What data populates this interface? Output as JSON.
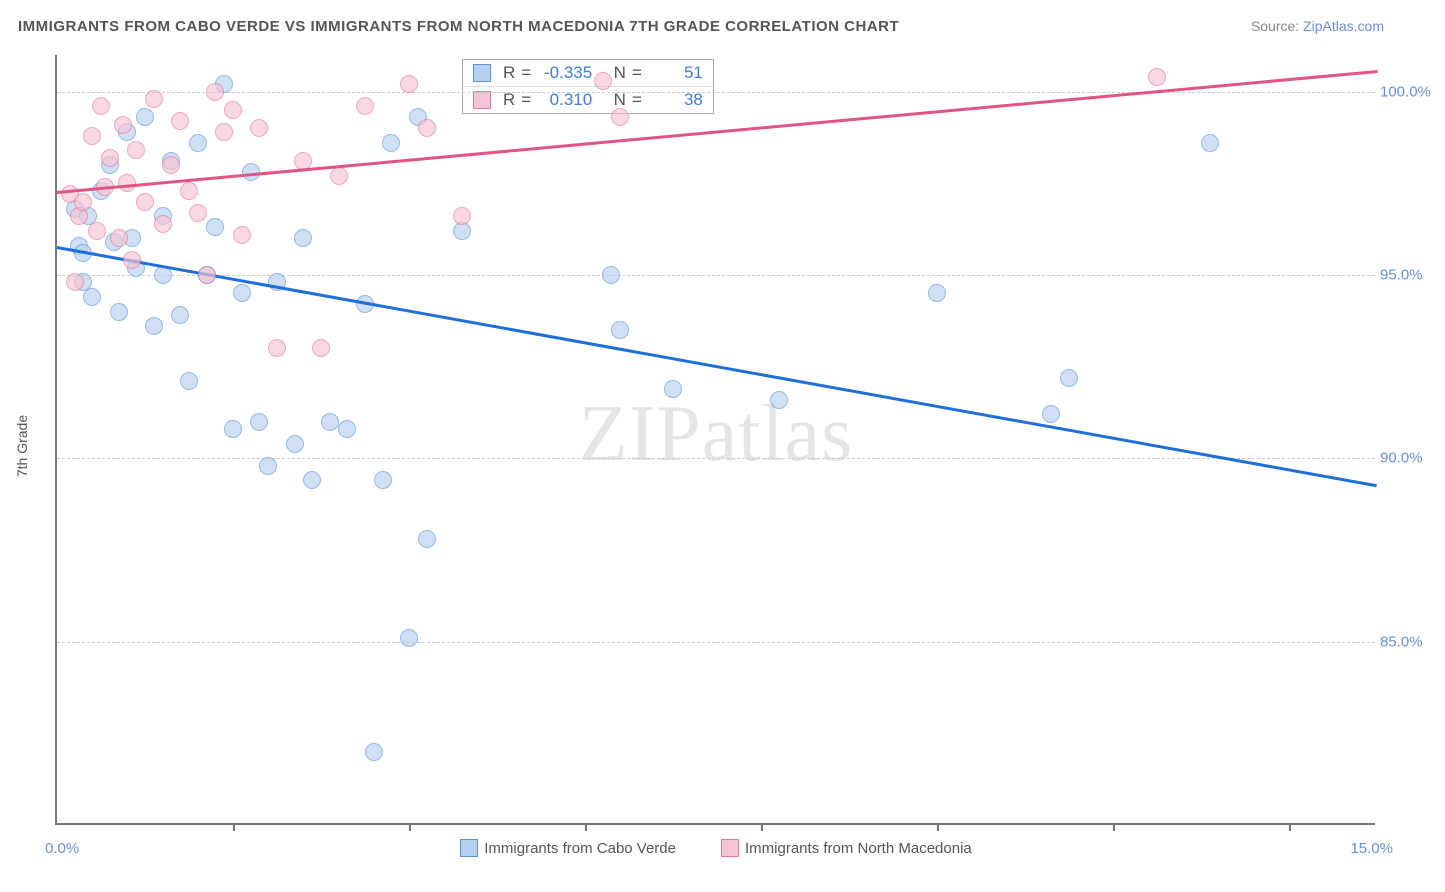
{
  "title": "IMMIGRANTS FROM CABO VERDE VS IMMIGRANTS FROM NORTH MACEDONIA 7TH GRADE CORRELATION CHART",
  "source_prefix": "Source: ",
  "source_name": "ZipAtlas.com",
  "watermark": "ZIPatlas",
  "y_axis_title": "7th Grade",
  "chart": {
    "type": "scatter",
    "x_domain": [
      0,
      15
    ],
    "y_domain": [
      80,
      101
    ],
    "x_min_label": "0.0%",
    "x_max_label": "15.0%",
    "x_ticks": [
      2,
      4,
      6,
      8,
      10,
      12,
      14
    ],
    "y_ticks": [
      {
        "v": 85,
        "label": "85.0%"
      },
      {
        "v": 90,
        "label": "90.0%"
      },
      {
        "v": 95,
        "label": "95.0%"
      },
      {
        "v": 100,
        "label": "100.0%"
      }
    ],
    "grid_color": "#cccccc",
    "background_color": "#ffffff",
    "point_radius": 9,
    "series": [
      {
        "key": "cabo_verde",
        "label": "Immigrants from Cabo Verde",
        "fill": "#b6d0f0",
        "stroke": "#5f94da",
        "line_color": "#1e6fd9",
        "R": "-0.335",
        "N": "51",
        "trend": {
          "x1": 0,
          "y1": 95.8,
          "x2": 15,
          "y2": 89.3
        },
        "points": [
          [
            0.2,
            96.8
          ],
          [
            0.25,
            95.8
          ],
          [
            0.3,
            94.8
          ],
          [
            0.3,
            95.6
          ],
          [
            0.35,
            96.6
          ],
          [
            0.4,
            94.4
          ],
          [
            0.5,
            97.3
          ],
          [
            0.6,
            98.0
          ],
          [
            0.65,
            95.9
          ],
          [
            0.7,
            94.0
          ],
          [
            0.8,
            98.9
          ],
          [
            0.85,
            96.0
          ],
          [
            0.9,
            95.2
          ],
          [
            1.0,
            99.3
          ],
          [
            1.1,
            93.6
          ],
          [
            1.2,
            96.6
          ],
          [
            1.2,
            95.0
          ],
          [
            1.3,
            98.1
          ],
          [
            1.4,
            93.9
          ],
          [
            1.5,
            92.1
          ],
          [
            1.6,
            98.6
          ],
          [
            1.7,
            95.0
          ],
          [
            1.8,
            96.3
          ],
          [
            1.9,
            100.2
          ],
          [
            2.0,
            90.8
          ],
          [
            2.1,
            94.5
          ],
          [
            2.2,
            97.8
          ],
          [
            2.3,
            91.0
          ],
          [
            2.4,
            89.8
          ],
          [
            2.5,
            94.8
          ],
          [
            2.7,
            90.4
          ],
          [
            2.8,
            96.0
          ],
          [
            2.9,
            89.4
          ],
          [
            3.1,
            91.0
          ],
          [
            3.3,
            90.8
          ],
          [
            3.5,
            94.2
          ],
          [
            3.6,
            82.0
          ],
          [
            3.7,
            89.4
          ],
          [
            3.8,
            98.6
          ],
          [
            4.0,
            85.1
          ],
          [
            4.1,
            99.3
          ],
          [
            4.2,
            87.8
          ],
          [
            4.6,
            96.2
          ],
          [
            6.3,
            95.0
          ],
          [
            6.4,
            93.5
          ],
          [
            7.0,
            91.9
          ],
          [
            8.2,
            91.6
          ],
          [
            10.0,
            94.5
          ],
          [
            11.3,
            91.2
          ],
          [
            11.5,
            92.2
          ],
          [
            13.1,
            98.6
          ]
        ]
      },
      {
        "key": "north_macedonia",
        "label": "Immigrants from North Macedonia",
        "fill": "#f7c4d3",
        "stroke": "#e47b9b",
        "line_color": "#e25583",
        "R": "0.310",
        "N": "38",
        "trend": {
          "x1": 0,
          "y1": 97.3,
          "x2": 15,
          "y2": 100.6
        },
        "points": [
          [
            0.15,
            97.2
          ],
          [
            0.2,
            94.8
          ],
          [
            0.25,
            96.6
          ],
          [
            0.3,
            97.0
          ],
          [
            0.4,
            98.8
          ],
          [
            0.45,
            96.2
          ],
          [
            0.5,
            99.6
          ],
          [
            0.55,
            97.4
          ],
          [
            0.6,
            98.2
          ],
          [
            0.7,
            96.0
          ],
          [
            0.75,
            99.1
          ],
          [
            0.8,
            97.5
          ],
          [
            0.85,
            95.4
          ],
          [
            0.9,
            98.4
          ],
          [
            1.0,
            97.0
          ],
          [
            1.1,
            99.8
          ],
          [
            1.2,
            96.4
          ],
          [
            1.3,
            98.0
          ],
          [
            1.4,
            99.2
          ],
          [
            1.5,
            97.3
          ],
          [
            1.6,
            96.7
          ],
          [
            1.7,
            95.0
          ],
          [
            1.8,
            100.0
          ],
          [
            1.9,
            98.9
          ],
          [
            2.0,
            99.5
          ],
          [
            2.1,
            96.1
          ],
          [
            2.3,
            99.0
          ],
          [
            2.5,
            93.0
          ],
          [
            2.8,
            98.1
          ],
          [
            3.0,
            93.0
          ],
          [
            3.2,
            97.7
          ],
          [
            3.5,
            99.6
          ],
          [
            4.0,
            100.2
          ],
          [
            4.2,
            99.0
          ],
          [
            4.6,
            96.6
          ],
          [
            6.2,
            100.3
          ],
          [
            6.4,
            99.3
          ],
          [
            12.5,
            100.4
          ]
        ]
      }
    ]
  },
  "stats_labels": {
    "r": "R",
    "n": "N",
    "eq": "="
  },
  "legend_swatch_border": {
    "blue": "#5f94da",
    "pink": "#e47b9b"
  }
}
